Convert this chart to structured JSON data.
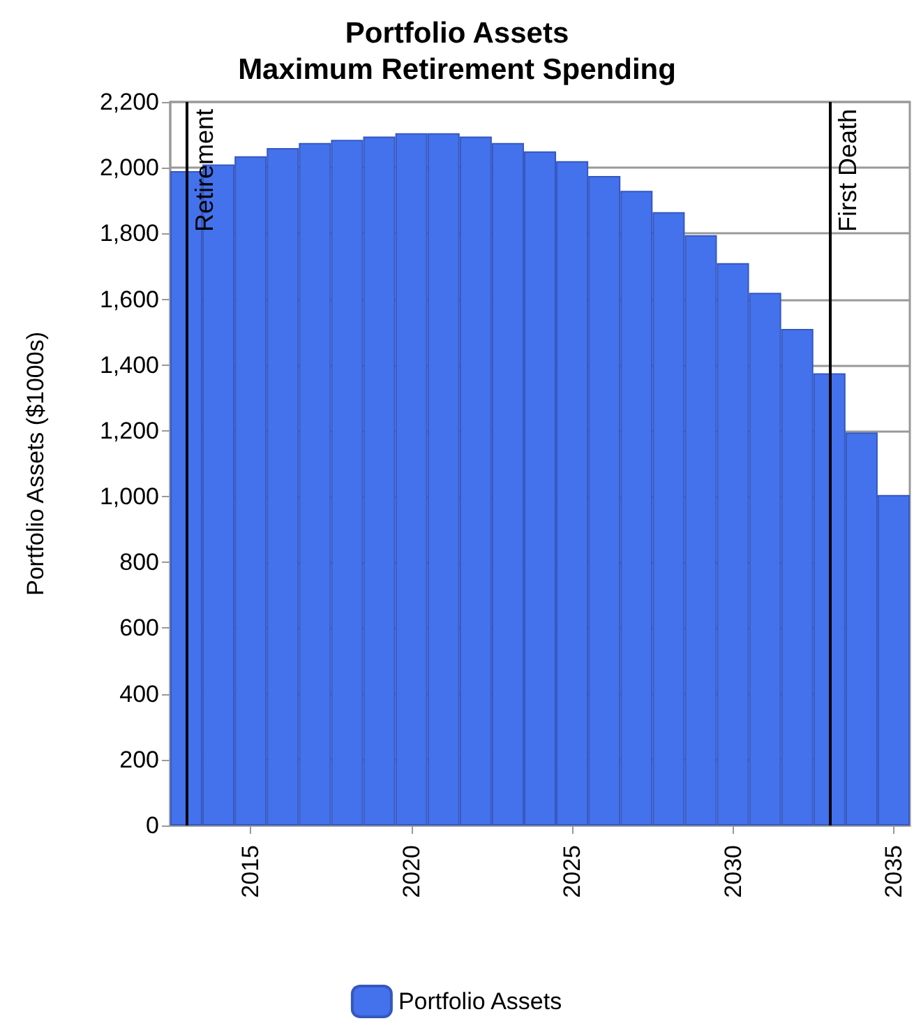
{
  "chart_data": {
    "type": "bar",
    "title": "Portfolio Assets\nMaximum Retirement Spending",
    "ylabel": "Portfolio Assets ($1000s)",
    "x": [
      2013,
      2014,
      2015,
      2016,
      2017,
      2018,
      2019,
      2020,
      2021,
      2022,
      2023,
      2024,
      2025,
      2026,
      2027,
      2028,
      2029,
      2030,
      2031,
      2032,
      2033,
      2034,
      2035
    ],
    "series": [
      {
        "name": "Portfolio Assets",
        "color": "#4472ec",
        "values": [
          1990,
          2010,
          2035,
          2060,
          2075,
          2085,
          2095,
          2105,
          2105,
          2095,
          2075,
          2050,
          2020,
          1975,
          1930,
          1865,
          1795,
          1710,
          1620,
          1510,
          1375,
          1195,
          1005
        ]
      }
    ],
    "xlim": [
      2012.5,
      2035.5
    ],
    "xticks": [
      2015,
      2020,
      2025,
      2030,
      2035
    ],
    "ylim": [
      0,
      2200
    ],
    "yticks": [
      0,
      200,
      400,
      600,
      800,
      {
        "value": 1000,
        "label": "1,000"
      },
      {
        "value": 1200,
        "label": "1,200"
      },
      {
        "value": 1400,
        "label": "1,400"
      },
      {
        "value": 1600,
        "label": "1,600"
      },
      {
        "value": 1800,
        "label": "1,800"
      },
      {
        "value": 2000,
        "label": "2,000"
      },
      {
        "value": 2200,
        "label": "2,200"
      }
    ],
    "ref_lines": [
      {
        "axis": "x",
        "value": 2013,
        "label": "Retirement",
        "color": "#000000"
      },
      {
        "axis": "x",
        "value": 2033,
        "label": "First Death",
        "color": "#000000"
      }
    ],
    "grid": "y",
    "legend": "bottom"
  }
}
